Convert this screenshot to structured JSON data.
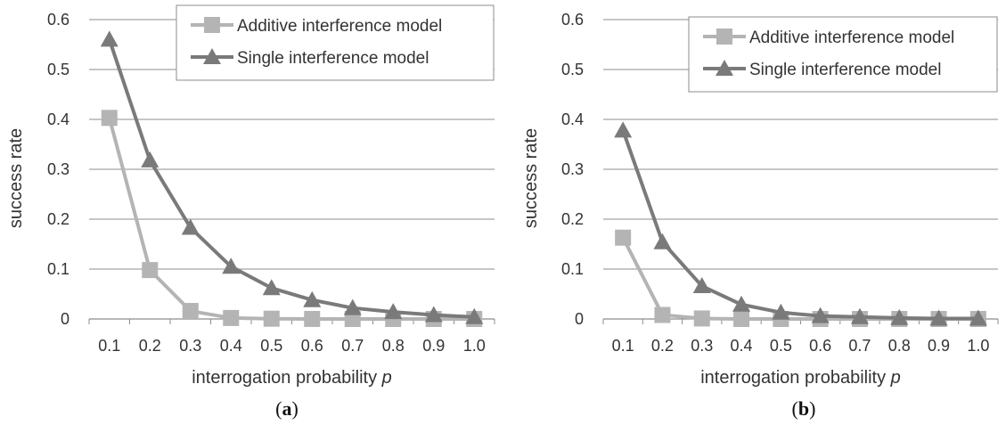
{
  "chart_data": [
    {
      "type": "line",
      "caption_letter": "a",
      "xlabel": "interrogation probability",
      "xlabel_var": "p",
      "ylabel": "success rate",
      "categories": [
        "0.1",
        "0.2",
        "0.3",
        "0.4",
        "0.5",
        "0.6",
        "0.7",
        "0.8",
        "0.9",
        "1.0"
      ],
      "yticks": [
        "0",
        "0.1",
        "0.2",
        "0.3",
        "0.4",
        "0.5",
        "0.6"
      ],
      "ylim": [
        0,
        0.6
      ],
      "grid": "horizontal",
      "legend_position": "top-right",
      "series": [
        {
          "name": "Additive interference model",
          "marker": "square",
          "color": "#b4b4b4",
          "values": [
            0.403,
            0.098,
            0.016,
            0.002,
            0.0005,
            0.0001,
            0.0,
            0.0,
            0.0,
            0.0
          ]
        },
        {
          "name": "Single interference model",
          "marker": "triangle",
          "color": "#7a7a7a",
          "values": [
            0.56,
            0.318,
            0.183,
            0.105,
            0.062,
            0.038,
            0.022,
            0.014,
            0.008,
            0.004
          ]
        }
      ]
    },
    {
      "type": "line",
      "caption_letter": "b",
      "xlabel": "interrogation probability",
      "xlabel_var": "p",
      "ylabel": "success rate",
      "categories": [
        "0.1",
        "0.2",
        "0.3",
        "0.4",
        "0.5",
        "0.6",
        "0.7",
        "0.8",
        "0.9",
        "1.0"
      ],
      "yticks": [
        "0",
        "0.1",
        "0.2",
        "0.3",
        "0.4",
        "0.5",
        "0.6"
      ],
      "ylim": [
        0,
        0.6
      ],
      "grid": "horizontal",
      "legend_position": "top-right",
      "series": [
        {
          "name": "Additive interference model",
          "marker": "square",
          "color": "#b4b4b4",
          "values": [
            0.163,
            0.008,
            0.001,
            0.0,
            0.0,
            0.0,
            0.0,
            0.0,
            0.0,
            0.0
          ]
        },
        {
          "name": "Single interference model",
          "marker": "triangle",
          "color": "#7a7a7a",
          "values": [
            0.378,
            0.154,
            0.066,
            0.029,
            0.013,
            0.006,
            0.004,
            0.002,
            0.001,
            0.001
          ]
        }
      ]
    }
  ]
}
